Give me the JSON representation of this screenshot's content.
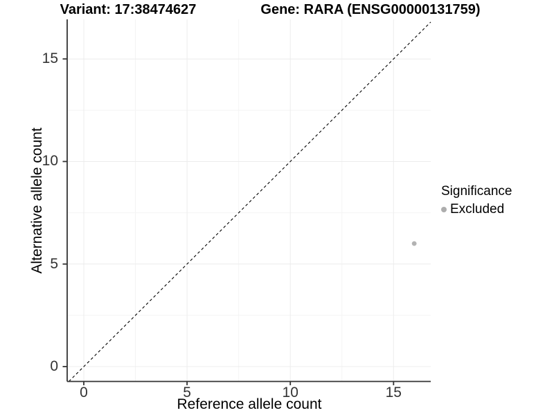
{
  "chart_data": {
    "type": "scatter",
    "title_left": "Variant: 17:38474627",
    "title_right": "Gene: RARA (ENSG00000131759)",
    "xlabel": "Reference allele count",
    "ylabel": "Alternative allele count",
    "xlim": [
      0,
      16
    ],
    "ylim": [
      0,
      16
    ],
    "x_ticks": [
      0,
      5,
      10,
      15
    ],
    "y_ticks": [
      0,
      5,
      10,
      15
    ],
    "x_minor_ticks": [
      2.5,
      7.5,
      12.5
    ],
    "y_minor_ticks": [
      2.5,
      7.5,
      12.5
    ],
    "grid": true,
    "identity_line": {
      "style": "dashed",
      "from": [
        0,
        0
      ],
      "to": [
        16,
        16
      ],
      "color": "#000000"
    },
    "series": [
      {
        "name": "Excluded",
        "color": "#b3b3b3",
        "points": [
          [
            16,
            6
          ]
        ],
        "point_radius": 3.4
      }
    ],
    "legend": {
      "title": "Significance",
      "position": "right",
      "entries": [
        {
          "label": "Excluded",
          "color": "#adadad"
        }
      ]
    },
    "style": {
      "background": "#ffffff",
      "grid_major": "#ececec",
      "grid_minor": "#f4f4f4",
      "axis_line": "#333333",
      "tick_text": "#333333"
    }
  }
}
